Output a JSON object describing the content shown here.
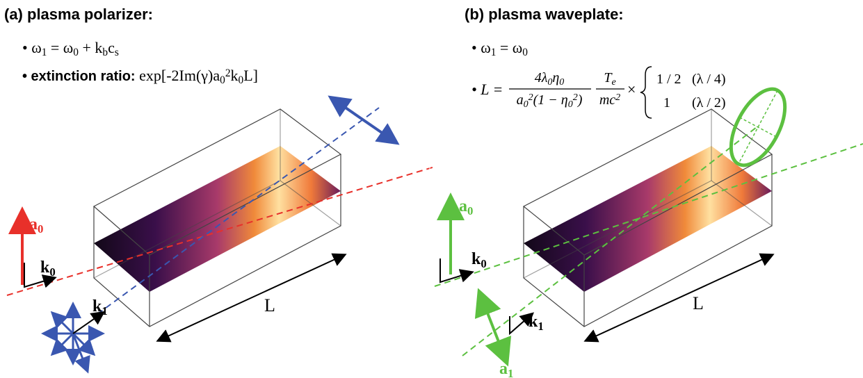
{
  "panel_a": {
    "title": "(a) plasma polarizer:",
    "line1": [
      {
        "t": "• ω"
      },
      {
        "sub": "1"
      },
      {
        "t": " = ω"
      },
      {
        "sub": "0"
      },
      {
        "t": " + k"
      },
      {
        "sub": "b"
      },
      {
        "t": "c"
      },
      {
        "sub": "s"
      }
    ],
    "line2": [
      {
        "sans": "• extinction ratio: "
      },
      {
        "t": "exp[-2Im(γ)a"
      },
      {
        "sub": "0"
      },
      {
        "sup": "2"
      },
      {
        "t": "k"
      },
      {
        "sub": "0"
      },
      {
        "t": "L]"
      }
    ],
    "labels": {
      "a0": [
        {
          "t": "a"
        },
        {
          "sub": "0"
        }
      ],
      "k0": [
        {
          "t": "k"
        },
        {
          "sub": "0"
        }
      ],
      "k1": [
        {
          "t": "k"
        },
        {
          "sub": "1"
        }
      ],
      "L": "L"
    }
  },
  "panel_b": {
    "title": "(b) plasma waveplate:",
    "line1": [
      {
        "t": "• ω"
      },
      {
        "sub": "1"
      },
      {
        "t": " = ω"
      },
      {
        "sub": "0"
      }
    ],
    "formula": {
      "lhs": "• L =",
      "num1": [
        {
          "t": "4λ"
        },
        {
          "sub": "0"
        },
        {
          "t": "η"
        },
        {
          "sub": "0"
        }
      ],
      "den1": [
        {
          "t": "a"
        },
        {
          "sub": "0"
        },
        {
          "sup": "2"
        },
        {
          "t": "(1 − η"
        },
        {
          "sub": "0"
        },
        {
          "sup": "2"
        },
        {
          "t": ")"
        }
      ],
      "num2": [
        {
          "t": "T"
        },
        {
          "sub": "e"
        }
      ],
      "den2": [
        {
          "t": "mc"
        },
        {
          "sup": "2"
        }
      ],
      "times": "×",
      "cases": [
        [
          "1 / 2",
          "(λ / 4)"
        ],
        [
          "1",
          "(λ / 2)"
        ]
      ]
    },
    "labels": {
      "a0": [
        {
          "t": "a"
        },
        {
          "sub": "0"
        }
      ],
      "k0": [
        {
          "t": "k"
        },
        {
          "sub": "0"
        }
      ],
      "k1": [
        {
          "t": "k"
        },
        {
          "sub": "1"
        }
      ],
      "a1": [
        {
          "t": "a"
        },
        {
          "sub": "1"
        }
      ],
      "L": "L"
    }
  }
}
